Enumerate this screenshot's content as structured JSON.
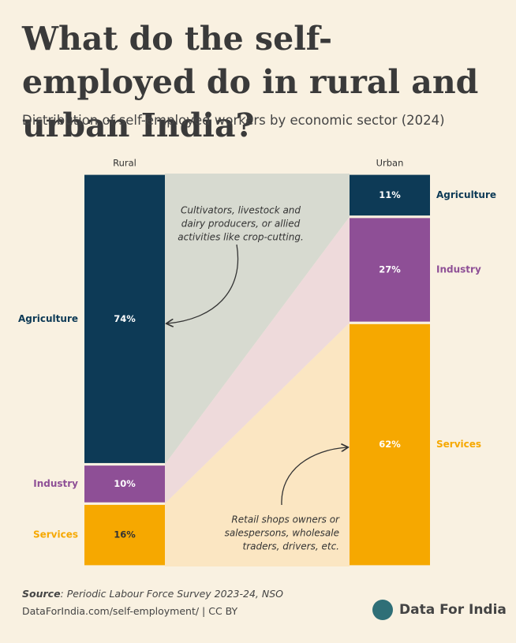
{
  "chart_data": {
    "type": "stacked-bar-flow",
    "title": "What do the self-employed do in rural and urban India?",
    "subtitle": "Distribution of self-employed workers by economic sector (2024)",
    "categories": [
      "Rural",
      "Urban"
    ],
    "ylim": [
      0,
      100
    ],
    "series": [
      {
        "name": "Agriculture",
        "color": "#0d3a56",
        "flow_color": "#d7dad0",
        "values": [
          74,
          11
        ],
        "value_labels": [
          "74%",
          "11%"
        ]
      },
      {
        "name": "Industry",
        "color": "#8e4f96",
        "flow_color": "#eedadb",
        "values": [
          10,
          27
        ],
        "value_labels": [
          "10%",
          "27%"
        ]
      },
      {
        "name": "Services",
        "color": "#f6a800",
        "flow_color": "#fbe6c2",
        "values": [
          16,
          62
        ],
        "value_labels": [
          "16%",
          "62%"
        ]
      }
    ],
    "annotations": [
      {
        "lines": [
          "Cultivators, livestock and",
          "dairy producers, or allied",
          "activities like crop-cutting."
        ]
      },
      {
        "lines": [
          "Retail shops owners or",
          "salespersons, wholesale",
          "traders, drivers, etc."
        ]
      }
    ]
  },
  "source_label": "Source",
  "source": ": Periodic Labour Force Survey 2023-24, NSO",
  "footer": "DataForIndia.com/self-employment/  |  CC BY",
  "logo": "Data For India"
}
